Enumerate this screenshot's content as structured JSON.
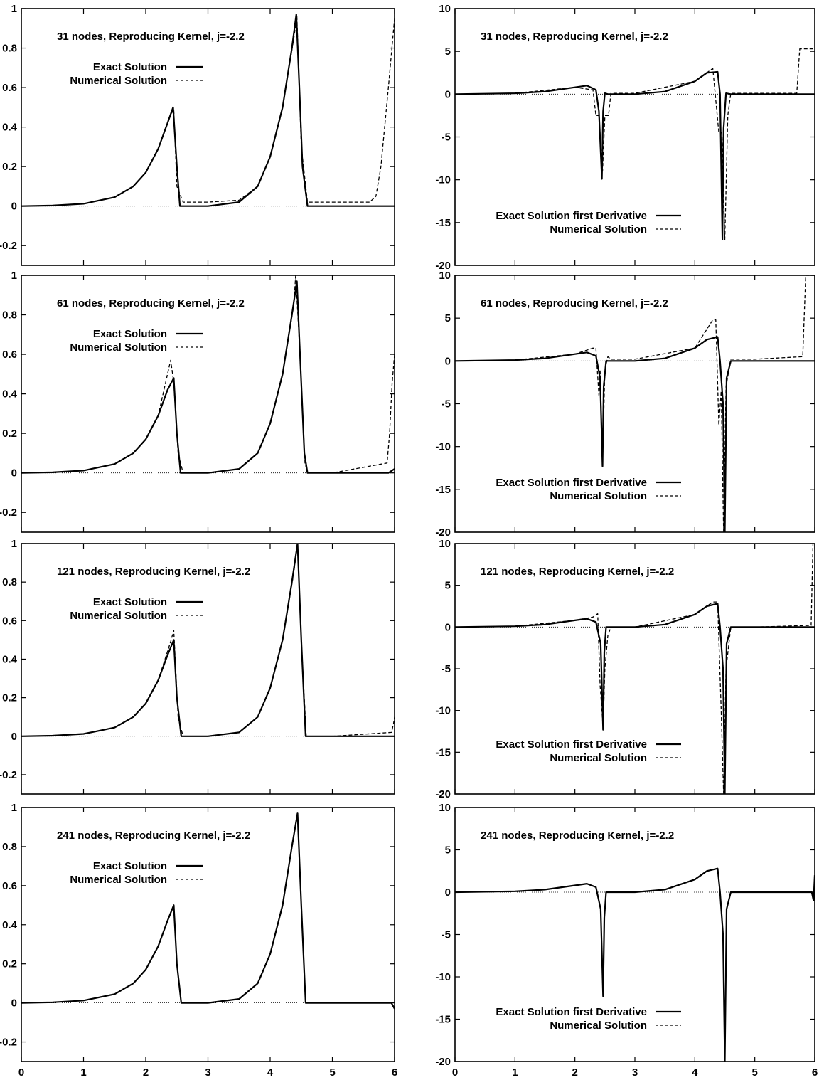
{
  "figure": {
    "xlim": [
      0,
      6
    ],
    "x_ticks": [
      "0",
      "1",
      "2",
      "3",
      "4",
      "5",
      "6"
    ],
    "left_y_ticks": [
      "-0.2",
      "0",
      "0.2",
      "0.4",
      "0.6",
      "0.8",
      "1"
    ],
    "right_y_ticks": [
      "-20",
      "-15",
      "-10",
      "-5",
      "0",
      "5",
      "10"
    ]
  },
  "chart_data": [
    {
      "type": "line",
      "title": "31 nodes, Reproducing Kernel, j=-2.2",
      "ylim": [
        -0.3,
        1
      ],
      "grid": false,
      "legend_position": "top-left",
      "series": [
        {
          "name": "Exact Solution",
          "style": "solid",
          "x": [
            0,
            0.5,
            1.0,
            1.5,
            1.8,
            2.0,
            2.2,
            2.35,
            2.44,
            2.5,
            2.55,
            3.0,
            3.5,
            3.8,
            4.0,
            4.2,
            4.35,
            4.42,
            4.47,
            4.52,
            4.6,
            5.0,
            5.5,
            6.0
          ],
          "y": [
            0,
            0.003,
            0.012,
            0.045,
            0.1,
            0.17,
            0.29,
            0.42,
            0.5,
            0.2,
            0,
            0,
            0.02,
            0.1,
            0.25,
            0.5,
            0.8,
            0.97,
            0.6,
            0.2,
            0,
            0,
            0,
            0
          ]
        },
        {
          "name": "Numerical Solution",
          "style": "dashed",
          "x": [
            0,
            0.5,
            1.0,
            1.5,
            1.8,
            2.0,
            2.2,
            2.38,
            2.45,
            2.5,
            2.6,
            3.0,
            3.5,
            3.8,
            4.0,
            4.2,
            4.38,
            4.43,
            4.5,
            4.6,
            5.0,
            5.6,
            5.7,
            5.78,
            5.9,
            6.0
          ],
          "y": [
            0,
            0.003,
            0.012,
            0.045,
            0.1,
            0.17,
            0.29,
            0.45,
            0.49,
            0.1,
            0.02,
            0.02,
            0.03,
            0.1,
            0.25,
            0.5,
            0.85,
            0.96,
            0.3,
            0.02,
            0.02,
            0.02,
            0.05,
            0.2,
            0.6,
            0.95
          ]
        }
      ]
    },
    {
      "type": "line",
      "title": "31 nodes, Reproducing Kernel, j=-2.2",
      "ylim": [
        -20,
        10
      ],
      "grid": false,
      "legend_position": "bottom-left",
      "series": [
        {
          "name": "Exact Solution first Derivative",
          "style": "solid",
          "x": [
            0,
            1.0,
            1.5,
            2.0,
            2.2,
            2.35,
            2.4,
            2.45,
            2.47,
            2.5,
            2.55,
            3.0,
            3.5,
            4.0,
            4.2,
            4.38,
            4.42,
            4.46,
            4.48,
            4.52,
            4.6,
            5.0,
            6.0
          ],
          "y": [
            0,
            0.1,
            0.3,
            0.8,
            1.0,
            0.5,
            -2.0,
            -9.9,
            -2.0,
            0.1,
            0,
            0,
            0.3,
            1.5,
            2.5,
            2.6,
            0,
            -17.0,
            -4.0,
            0.1,
            0,
            0,
            0
          ]
        },
        {
          "name": "Numerical Solution",
          "style": "dashed",
          "x": [
            0,
            1.0,
            2.0,
            2.3,
            2.35,
            2.4,
            2.46,
            2.5,
            2.56,
            2.6,
            3.0,
            4.0,
            4.3,
            4.4,
            4.45,
            4.5,
            4.55,
            4.6,
            5.0,
            5.7,
            5.75,
            5.8,
            6.0
          ],
          "y": [
            0,
            0.1,
            0.8,
            0.5,
            -2.5,
            -2.5,
            -9.0,
            -2.5,
            -2.5,
            0.1,
            0.1,
            1.5,
            3.0,
            -4.5,
            -4.5,
            -17.0,
            -2.5,
            0.1,
            0.1,
            0.1,
            5.3,
            5.3,
            5.3
          ]
        }
      ]
    },
    {
      "type": "line",
      "title": "61 nodes, Reproducing Kernel, j=-2.2",
      "ylim": [
        -0.3,
        1
      ],
      "grid": false,
      "legend_position": "top-left",
      "series": [
        {
          "name": "Exact Solution",
          "style": "solid",
          "x": [
            0,
            0.5,
            1.0,
            1.5,
            1.8,
            2.0,
            2.2,
            2.35,
            2.45,
            2.5,
            2.56,
            3.0,
            3.5,
            3.8,
            4.0,
            4.2,
            4.35,
            4.43,
            4.48,
            4.55,
            4.6,
            5.0,
            5.9,
            6.0
          ],
          "y": [
            0,
            0.003,
            0.012,
            0.045,
            0.1,
            0.17,
            0.29,
            0.42,
            0.48,
            0.2,
            0,
            0,
            0.02,
            0.1,
            0.25,
            0.5,
            0.8,
            0.97,
            0.6,
            0.1,
            0,
            0,
            0,
            0.02
          ]
        },
        {
          "name": "Numerical Solution",
          "style": "dashed",
          "x": [
            0,
            0.5,
            1.0,
            1.5,
            1.8,
            2.0,
            2.2,
            2.4,
            2.45,
            2.52,
            2.6,
            3.0,
            3.5,
            3.8,
            4.0,
            4.2,
            4.38,
            4.41,
            4.48,
            4.56,
            4.6,
            5.0,
            5.88,
            5.92,
            5.96,
            6.0
          ],
          "y": [
            0,
            0.003,
            0.012,
            0.045,
            0.1,
            0.17,
            0.29,
            0.57,
            0.46,
            0.1,
            0,
            0,
            0.02,
            0.1,
            0.25,
            0.5,
            0.85,
            1.0,
            0.6,
            0.05,
            0,
            0,
            0.05,
            0.2,
            0.45,
            0.6
          ]
        }
      ]
    },
    {
      "type": "line",
      "title": "61 nodes, Reproducing Kernel, j=-2.2",
      "ylim": [
        -20,
        10
      ],
      "grid": false,
      "legend_position": "bottom-left",
      "series": [
        {
          "name": "Exact Solution first Derivative",
          "style": "solid",
          "x": [
            0,
            1.0,
            1.5,
            2.0,
            2.2,
            2.35,
            2.42,
            2.46,
            2.48,
            2.52,
            2.56,
            3.0,
            3.5,
            4.0,
            4.2,
            4.38,
            4.42,
            4.47,
            4.5,
            4.53,
            4.6,
            5.0,
            6.0
          ],
          "y": [
            0,
            0.1,
            0.3,
            0.8,
            1.0,
            0.6,
            -2.0,
            -12.3,
            -3.0,
            0,
            0,
            0,
            0.3,
            1.5,
            2.5,
            2.8,
            0,
            -5.0,
            -20,
            -2.0,
            0,
            0,
            0
          ]
        },
        {
          "name": "Numerical Solution",
          "style": "dashed",
          "x": [
            0,
            1.0,
            2.0,
            2.3,
            2.35,
            2.4,
            2.42,
            2.46,
            2.5,
            2.55,
            2.6,
            3.0,
            4.0,
            4.3,
            4.35,
            4.4,
            4.44,
            4.48,
            4.52,
            4.6,
            5.0,
            5.8,
            5.85,
            5.9,
            6.0
          ],
          "y": [
            0,
            0.1,
            0.8,
            1.5,
            1.5,
            -4.0,
            -1.0,
            -12.0,
            -1.0,
            0.5,
            0.2,
            0.2,
            1.5,
            4.8,
            4.8,
            -7.5,
            -3.5,
            -20,
            -3.0,
            0.2,
            0.2,
            0.5,
            10,
            10,
            10
          ]
        }
      ]
    },
    {
      "type": "line",
      "title": "121 nodes, Reproducing Kernel, j=-2.2",
      "ylim": [
        -0.3,
        1
      ],
      "grid": false,
      "legend_position": "top-left",
      "series": [
        {
          "name": "Exact Solution",
          "style": "solid",
          "x": [
            0,
            0.5,
            1.0,
            1.5,
            1.8,
            2.0,
            2.2,
            2.35,
            2.45,
            2.5,
            2.57,
            3.0,
            3.5,
            3.8,
            4.0,
            4.2,
            4.35,
            4.44,
            4.5,
            4.57,
            4.6,
            5.0,
            6.0
          ],
          "y": [
            0,
            0.003,
            0.012,
            0.045,
            0.1,
            0.17,
            0.29,
            0.42,
            0.5,
            0.2,
            0,
            0,
            0.02,
            0.1,
            0.25,
            0.5,
            0.8,
            1.0,
            0.5,
            0,
            0,
            0,
            0
          ]
        },
        {
          "name": "Numerical Solution",
          "style": "dashed",
          "x": [
            0,
            0.5,
            1.0,
            1.5,
            1.8,
            2.0,
            2.2,
            2.4,
            2.45,
            2.52,
            2.6,
            3.0,
            3.5,
            3.8,
            4.0,
            4.2,
            4.38,
            4.44,
            4.5,
            4.58,
            4.6,
            5.0,
            5.95,
            5.98,
            6.0
          ],
          "y": [
            0,
            0.003,
            0.012,
            0.045,
            0.1,
            0.17,
            0.29,
            0.49,
            0.55,
            0.1,
            0,
            0,
            0.02,
            0.1,
            0.25,
            0.5,
            0.85,
            1.0,
            0.5,
            0,
            0,
            0,
            0.02,
            0.06,
            0.1
          ]
        }
      ]
    },
    {
      "type": "line",
      "title": "121 nodes, Reproducing Kernel, j=-2.2",
      "ylim": [
        -20,
        10
      ],
      "grid": false,
      "legend_position": "bottom-left",
      "series": [
        {
          "name": "Exact Solution first Derivative",
          "style": "solid",
          "x": [
            0,
            1.0,
            1.5,
            2.0,
            2.2,
            2.35,
            2.43,
            2.47,
            2.49,
            2.52,
            2.56,
            3.0,
            3.5,
            4.0,
            4.2,
            4.38,
            4.42,
            4.47,
            4.5,
            4.53,
            4.6,
            5.0,
            6.0
          ],
          "y": [
            0,
            0.1,
            0.3,
            0.8,
            1.0,
            0.6,
            -2.0,
            -12.3,
            -3.0,
            0,
            0,
            0,
            0.3,
            1.5,
            2.5,
            2.8,
            0,
            -5.0,
            -20,
            -2.0,
            0,
            0,
            0
          ]
        },
        {
          "name": "Numerical Solution",
          "style": "dashed",
          "x": [
            0,
            1.0,
            2.0,
            2.3,
            2.38,
            2.42,
            2.47,
            2.5,
            2.55,
            2.6,
            3.0,
            4.0,
            4.3,
            4.38,
            4.44,
            4.48,
            4.52,
            4.6,
            5.0,
            5.94,
            5.97,
            6.0
          ],
          "y": [
            0,
            0.1,
            0.8,
            1.2,
            1.6,
            -7.0,
            -12.0,
            -5.0,
            -1.0,
            0,
            0,
            1.5,
            3.0,
            3.0,
            -10.0,
            -20,
            -5.0,
            0,
            0,
            0.2,
            10,
            10
          ]
        }
      ]
    },
    {
      "type": "line",
      "title": "241 nodes, Reproducing Kernel, j=-2.2",
      "ylim": [
        -0.3,
        1
      ],
      "grid": false,
      "legend_position": "top-left",
      "xlabel": "",
      "series": [
        {
          "name": "Exact Solution",
          "style": "solid",
          "x": [
            0,
            0.5,
            1.0,
            1.5,
            1.8,
            2.0,
            2.2,
            2.35,
            2.45,
            2.5,
            2.57,
            3.0,
            3.5,
            3.8,
            4.0,
            4.2,
            4.35,
            4.44,
            4.5,
            4.57,
            4.6,
            5.0,
            5.95,
            6.0
          ],
          "y": [
            0,
            0.003,
            0.012,
            0.045,
            0.1,
            0.17,
            0.29,
            0.42,
            0.5,
            0.2,
            0,
            0,
            0.02,
            0.1,
            0.25,
            0.5,
            0.8,
            0.97,
            0.5,
            0,
            0,
            0,
            0,
            -0.03
          ]
        },
        {
          "name": "Numerical Solution",
          "style": "dashed",
          "x": [
            0,
            0.5,
            1.0,
            1.5,
            1.8,
            2.0,
            2.2,
            2.35,
            2.45,
            2.5,
            2.57,
            3.0,
            3.5,
            3.8,
            4.0,
            4.2,
            4.35,
            4.44,
            4.5,
            4.57,
            4.6,
            5.0,
            5.95,
            6.0
          ],
          "y": [
            0,
            0.003,
            0.012,
            0.045,
            0.1,
            0.17,
            0.29,
            0.42,
            0.5,
            0.2,
            0,
            0,
            0.02,
            0.1,
            0.25,
            0.5,
            0.8,
            0.97,
            0.5,
            0,
            0,
            0,
            0,
            -0.03
          ]
        }
      ]
    },
    {
      "type": "line",
      "title": "241 nodes, Reproducing Kernel, j=-2.2",
      "ylim": [
        -20,
        10
      ],
      "grid": false,
      "legend_position": "bottom-left",
      "series": [
        {
          "name": "Exact Solution first Derivative",
          "style": "solid",
          "x": [
            0,
            1.0,
            1.5,
            2.0,
            2.2,
            2.35,
            2.43,
            2.47,
            2.49,
            2.52,
            2.56,
            3.0,
            3.5,
            4.0,
            4.2,
            4.38,
            4.42,
            4.47,
            4.5,
            4.53,
            4.6,
            5.0,
            5.95,
            5.98,
            6.0
          ],
          "y": [
            0,
            0.1,
            0.3,
            0.8,
            1.0,
            0.6,
            -2.0,
            -12.3,
            -3.0,
            0,
            0,
            0,
            0.3,
            1.5,
            2.5,
            2.8,
            0,
            -5.0,
            -20,
            -2.0,
            0,
            0,
            0,
            -1.0,
            2.0
          ]
        },
        {
          "name": "Numerical Solution",
          "style": "dashed",
          "x": [
            0,
            1.0,
            1.5,
            2.0,
            2.2,
            2.35,
            2.43,
            2.47,
            2.49,
            2.52,
            2.56,
            3.0,
            3.5,
            4.0,
            4.2,
            4.38,
            4.42,
            4.47,
            4.5,
            4.53,
            4.6,
            5.0,
            5.95,
            5.98,
            6.0
          ],
          "y": [
            0,
            0.1,
            0.3,
            0.8,
            1.0,
            0.6,
            -2.0,
            -12.3,
            -3.0,
            0,
            0,
            0,
            0.3,
            1.5,
            2.5,
            2.8,
            0,
            -5.0,
            -20,
            -2.0,
            0,
            0,
            0,
            -1.0,
            2.0
          ]
        }
      ]
    }
  ]
}
